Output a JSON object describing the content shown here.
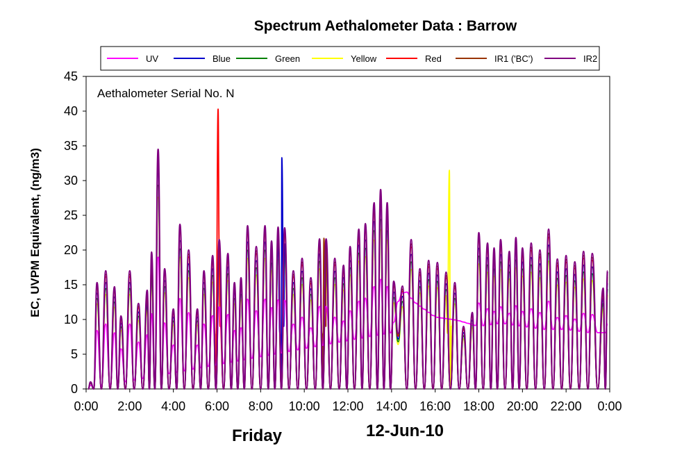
{
  "chart_data": {
    "type": "line",
    "title": "Spectrum Aethalometer Data  :  Barrow",
    "ylabel": "EC, UVPM Equivalent, (ng/m3)",
    "annotation": "Aethalometer  Serial No. N",
    "footer_day": "Friday",
    "footer_date": "12-Jun-10",
    "xlim": [
      0,
      24
    ],
    "ylim": [
      0,
      45
    ],
    "y_ticks": [
      "0",
      "5",
      "10",
      "15",
      "20",
      "25",
      "30",
      "35",
      "40",
      "45"
    ],
    "x_ticks": [
      "0:00",
      "2:00",
      "4:00",
      "6:00",
      "8:00",
      "10:00",
      "12:00",
      "14:00",
      "16:00",
      "18:00",
      "20:00",
      "22:00",
      "0:00"
    ],
    "plot_background": "#ffffff",
    "grid": false,
    "legend_position": "top",
    "series": [
      {
        "name": "UV",
        "color": "#ff00ff"
      },
      {
        "name": "Blue",
        "color": "#0000cc"
      },
      {
        "name": "Green",
        "color": "#008000"
      },
      {
        "name": "Yellow",
        "color": "#ffff00"
      },
      {
        "name": "Red",
        "color": "#ff0000"
      },
      {
        "name": "IR1 ('BC')",
        "color": "#993300"
      },
      {
        "name": "IR2",
        "color": "#800080"
      }
    ],
    "ir2_peaks": [
      [
        0.2,
        1
      ],
      [
        0.5,
        15.3
      ],
      [
        0.9,
        17
      ],
      [
        1.3,
        14.7
      ],
      [
        1.6,
        10.5
      ],
      [
        2.0,
        17
      ],
      [
        2.4,
        12.3
      ],
      [
        2.8,
        14.2
      ],
      [
        3.0,
        19.7
      ],
      [
        3.3,
        34.5
      ],
      [
        3.6,
        17.3
      ],
      [
        4.0,
        11.5
      ],
      [
        4.3,
        23.7
      ],
      [
        4.7,
        20
      ],
      [
        5.1,
        11.5
      ],
      [
        5.4,
        17
      ],
      [
        5.8,
        19.2
      ],
      [
        6.1,
        21.5
      ],
      [
        6.5,
        19.5
      ],
      [
        6.8,
        15.3
      ],
      [
        7.1,
        16
      ],
      [
        7.4,
        23.5
      ],
      [
        7.8,
        20.5
      ],
      [
        8.2,
        23.5
      ],
      [
        8.5,
        21.3
      ],
      [
        8.8,
        23.3
      ],
      [
        9.1,
        23.2
      ],
      [
        9.5,
        17
      ],
      [
        9.9,
        18.8
      ],
      [
        10.3,
        16
      ],
      [
        10.7,
        21.6
      ],
      [
        11.0,
        21.6
      ],
      [
        11.4,
        18.8
      ],
      [
        11.8,
        17.8
      ],
      [
        12.1,
        20.5
      ],
      [
        12.5,
        23
      ],
      [
        12.8,
        23.8
      ],
      [
        13.2,
        26.8
      ],
      [
        13.5,
        28.7
      ],
      [
        13.8,
        26.8
      ],
      [
        14.1,
        15.5
      ],
      [
        14.5,
        14.8
      ],
      [
        14.9,
        21.5
      ],
      [
        15.3,
        17.3
      ],
      [
        15.7,
        18.5
      ],
      [
        16.1,
        18.2
      ],
      [
        16.5,
        16.8
      ],
      [
        16.9,
        15.3
      ],
      [
        17.3,
        9
      ],
      [
        17.7,
        11
      ],
      [
        18.0,
        22.5
      ],
      [
        18.4,
        21
      ],
      [
        18.7,
        20.3
      ],
      [
        19.0,
        21.5
      ],
      [
        19.4,
        19.8
      ],
      [
        19.7,
        21.8
      ],
      [
        20.0,
        20.3
      ],
      [
        20.4,
        21
      ],
      [
        20.8,
        20
      ],
      [
        21.2,
        23
      ],
      [
        21.6,
        18.7
      ],
      [
        22.0,
        19.2
      ],
      [
        22.4,
        18.3
      ],
      [
        22.8,
        19.8
      ],
      [
        23.2,
        19.5
      ],
      [
        23.7,
        14.5
      ],
      [
        23.9,
        17
      ]
    ],
    "ir2_troughs": [
      [
        0.1,
        0
      ],
      [
        0.35,
        0
      ],
      [
        0.7,
        0
      ],
      [
        1.1,
        0
      ],
      [
        1.45,
        0
      ],
      [
        1.8,
        0
      ],
      [
        2.2,
        0
      ],
      [
        2.6,
        0
      ],
      [
        2.9,
        0
      ],
      [
        3.15,
        0
      ],
      [
        3.45,
        0
      ],
      [
        3.8,
        0
      ],
      [
        4.15,
        0
      ],
      [
        4.5,
        0
      ],
      [
        4.9,
        0
      ],
      [
        5.25,
        0
      ],
      [
        5.6,
        0
      ],
      [
        5.95,
        0
      ],
      [
        6.3,
        0
      ],
      [
        6.65,
        0
      ],
      [
        6.95,
        0
      ],
      [
        7.25,
        0
      ],
      [
        7.6,
        0
      ],
      [
        8.0,
        0
      ],
      [
        8.35,
        0
      ],
      [
        8.65,
        0
      ],
      [
        8.95,
        0
      ],
      [
        9.3,
        0
      ],
      [
        9.7,
        0
      ],
      [
        10.1,
        0
      ],
      [
        10.5,
        0
      ],
      [
        10.85,
        0
      ],
      [
        11.2,
        0
      ],
      [
        11.6,
        0
      ],
      [
        11.95,
        0
      ],
      [
        12.3,
        0
      ],
      [
        12.65,
        0
      ],
      [
        13.0,
        0
      ],
      [
        13.35,
        0
      ],
      [
        13.65,
        0
      ],
      [
        13.95,
        0
      ],
      [
        14.3,
        8
      ],
      [
        14.7,
        0
      ],
      [
        15.1,
        0
      ],
      [
        15.5,
        0
      ],
      [
        15.9,
        0
      ],
      [
        16.3,
        0
      ],
      [
        16.7,
        0
      ],
      [
        17.1,
        0
      ],
      [
        17.5,
        0
      ],
      [
        17.85,
        0
      ],
      [
        18.2,
        0
      ],
      [
        18.55,
        0
      ],
      [
        18.85,
        0
      ],
      [
        19.2,
        0
      ],
      [
        19.55,
        0
      ],
      [
        19.85,
        0
      ],
      [
        20.2,
        0
      ],
      [
        20.6,
        0
      ],
      [
        21.0,
        0
      ],
      [
        21.4,
        0
      ],
      [
        21.8,
        0
      ],
      [
        22.2,
        0
      ],
      [
        22.6,
        0
      ],
      [
        23.0,
        0
      ],
      [
        23.45,
        0
      ],
      [
        23.8,
        0
      ]
    ],
    "uv_baseline": [
      [
        0,
        0
      ],
      [
        14,
        9
      ],
      [
        14.3,
        14
      ],
      [
        14.6,
        16
      ],
      [
        15,
        14
      ],
      [
        16,
        11.5
      ],
      [
        17,
        11
      ],
      [
        18,
        10
      ],
      [
        19,
        10.5
      ],
      [
        20,
        10
      ],
      [
        21,
        9.5
      ],
      [
        22,
        9.5
      ],
      [
        23,
        9
      ],
      [
        24,
        9
      ]
    ],
    "spikes": {
      "Red": [
        6.05,
        40.3
      ],
      "Blue": [
        8.97,
        33.3
      ],
      "Yellow": [
        16.65,
        31.5
      ],
      "IR1 ('BC')": [
        10.9,
        21.7
      ]
    }
  }
}
